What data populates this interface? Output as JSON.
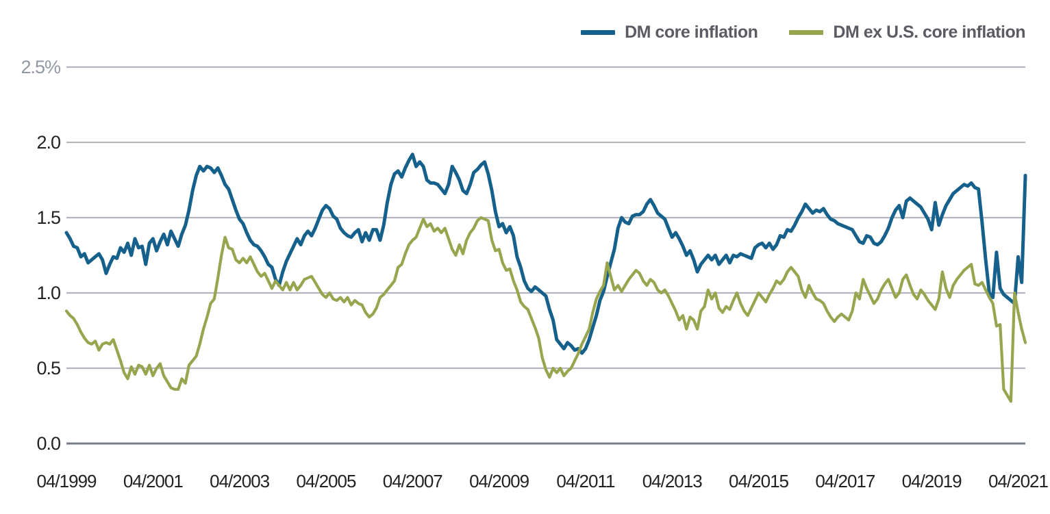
{
  "colors": {
    "background": "#ffffff",
    "gridline": "#b2b6be",
    "baseline": "#767d87",
    "y_axis_label": "#222222",
    "y_axis_top_label": "#9298a2",
    "x_axis_label": "#222222",
    "legend_text": "#5c5b64",
    "series_dm": "#16618c",
    "series_dm_ex_us": "#98a44e"
  },
  "chart_data": {
    "type": "line",
    "title": "",
    "xlabel": "",
    "ylabel": "",
    "unit": "%",
    "grid": "horizontal",
    "legend_position": "top-right",
    "x_frequency": "monthly",
    "x_start": "04/1999",
    "x_end": "06/2021",
    "x_tick_labels": [
      "04/1999",
      "04/2001",
      "04/2003",
      "04/2005",
      "04/2007",
      "04/2009",
      "04/2011",
      "04/2013",
      "04/2015",
      "04/2017",
      "04/2019",
      "04/2021"
    ],
    "x_tick_month_indices": [
      0,
      24,
      48,
      72,
      96,
      120,
      144,
      168,
      192,
      216,
      240,
      264
    ],
    "ylim": [
      0.0,
      2.5
    ],
    "y_ticks": [
      0.0,
      0.5,
      1.0,
      1.5,
      2.0,
      2.5
    ],
    "y_tick_labels": [
      "0.0",
      "0.5",
      "1.0",
      "1.5",
      "2.0",
      "2.5%"
    ],
    "series": [
      {
        "name": "DM core inflation",
        "color": "#16618c",
        "values": [
          1.4,
          1.36,
          1.31,
          1.3,
          1.24,
          1.26,
          1.2,
          1.22,
          1.24,
          1.26,
          1.22,
          1.13,
          1.19,
          1.24,
          1.23,
          1.3,
          1.27,
          1.33,
          1.25,
          1.36,
          1.3,
          1.31,
          1.19,
          1.33,
          1.36,
          1.28,
          1.34,
          1.39,
          1.32,
          1.41,
          1.36,
          1.31,
          1.39,
          1.45,
          1.55,
          1.68,
          1.78,
          1.84,
          1.81,
          1.84,
          1.83,
          1.8,
          1.83,
          1.78,
          1.72,
          1.69,
          1.62,
          1.55,
          1.49,
          1.46,
          1.4,
          1.35,
          1.32,
          1.31,
          1.28,
          1.24,
          1.19,
          1.17,
          1.09,
          1.05,
          1.14,
          1.21,
          1.26,
          1.31,
          1.36,
          1.32,
          1.38,
          1.41,
          1.38,
          1.43,
          1.49,
          1.55,
          1.58,
          1.56,
          1.51,
          1.49,
          1.43,
          1.4,
          1.38,
          1.37,
          1.4,
          1.42,
          1.34,
          1.4,
          1.35,
          1.42,
          1.42,
          1.35,
          1.45,
          1.6,
          1.72,
          1.79,
          1.81,
          1.77,
          1.83,
          1.88,
          1.92,
          1.84,
          1.87,
          1.84,
          1.75,
          1.73,
          1.73,
          1.72,
          1.69,
          1.66,
          1.72,
          1.84,
          1.8,
          1.75,
          1.68,
          1.66,
          1.72,
          1.8,
          1.82,
          1.85,
          1.87,
          1.79,
          1.68,
          1.54,
          1.44,
          1.46,
          1.4,
          1.44,
          1.38,
          1.24,
          1.17,
          1.08,
          1.03,
          1.01,
          1.04,
          1.02,
          1.0,
          0.98,
          0.89,
          0.82,
          0.69,
          0.66,
          0.63,
          0.67,
          0.65,
          0.62,
          0.63,
          0.6,
          0.63,
          0.69,
          0.77,
          0.85,
          0.95,
          1.01,
          1.11,
          1.2,
          1.29,
          1.43,
          1.5,
          1.47,
          1.46,
          1.51,
          1.52,
          1.52,
          1.54,
          1.59,
          1.62,
          1.58,
          1.53,
          1.51,
          1.49,
          1.43,
          1.37,
          1.4,
          1.36,
          1.31,
          1.25,
          1.28,
          1.22,
          1.14,
          1.19,
          1.22,
          1.25,
          1.22,
          1.25,
          1.19,
          1.22,
          1.25,
          1.2,
          1.25,
          1.24,
          1.26,
          1.25,
          1.24,
          1.23,
          1.3,
          1.32,
          1.33,
          1.3,
          1.33,
          1.29,
          1.32,
          1.38,
          1.37,
          1.42,
          1.41,
          1.45,
          1.5,
          1.54,
          1.59,
          1.56,
          1.53,
          1.55,
          1.54,
          1.56,
          1.52,
          1.49,
          1.48,
          1.46,
          1.45,
          1.44,
          1.43,
          1.42,
          1.38,
          1.34,
          1.33,
          1.38,
          1.37,
          1.33,
          1.32,
          1.34,
          1.38,
          1.43,
          1.5,
          1.55,
          1.58,
          1.5,
          1.61,
          1.63,
          1.61,
          1.59,
          1.57,
          1.53,
          1.49,
          1.42,
          1.6,
          1.45,
          1.52,
          1.58,
          1.62,
          1.66,
          1.68,
          1.7,
          1.72,
          1.71,
          1.73,
          1.7,
          1.69,
          1.47,
          1.22,
          1.0,
          0.97,
          1.27,
          1.03,
          0.99,
          0.97,
          0.95,
          0.93,
          1.24,
          1.07,
          1.78
        ]
      },
      {
        "name": "DM ex U.S. core inflation",
        "color": "#98a44e",
        "values": [
          0.88,
          0.85,
          0.83,
          0.79,
          0.74,
          0.7,
          0.67,
          0.66,
          0.68,
          0.62,
          0.66,
          0.67,
          0.66,
          0.69,
          0.62,
          0.55,
          0.47,
          0.43,
          0.51,
          0.46,
          0.52,
          0.51,
          0.46,
          0.52,
          0.45,
          0.5,
          0.53,
          0.45,
          0.41,
          0.37,
          0.36,
          0.36,
          0.43,
          0.4,
          0.52,
          0.55,
          0.58,
          0.66,
          0.76,
          0.84,
          0.93,
          0.96,
          1.1,
          1.25,
          1.37,
          1.3,
          1.29,
          1.22,
          1.2,
          1.23,
          1.2,
          1.24,
          1.19,
          1.14,
          1.11,
          1.13,
          1.08,
          1.03,
          1.08,
          1.05,
          1.02,
          1.07,
          1.02,
          1.07,
          1.02,
          1.05,
          1.09,
          1.1,
          1.11,
          1.07,
          1.03,
          0.99,
          0.97,
          1.0,
          0.96,
          0.95,
          0.97,
          0.94,
          0.97,
          0.92,
          0.95,
          0.93,
          0.92,
          0.87,
          0.84,
          0.86,
          0.9,
          0.97,
          0.99,
          1.02,
          1.05,
          1.08,
          1.17,
          1.19,
          1.26,
          1.32,
          1.35,
          1.37,
          1.43,
          1.49,
          1.44,
          1.46,
          1.41,
          1.43,
          1.4,
          1.43,
          1.36,
          1.29,
          1.25,
          1.32,
          1.26,
          1.35,
          1.4,
          1.43,
          1.48,
          1.5,
          1.49,
          1.48,
          1.35,
          1.28,
          1.29,
          1.2,
          1.15,
          1.16,
          1.08,
          1.02,
          0.94,
          0.91,
          0.89,
          0.83,
          0.77,
          0.7,
          0.57,
          0.49,
          0.44,
          0.5,
          0.47,
          0.5,
          0.45,
          0.48,
          0.5,
          0.55,
          0.6,
          0.66,
          0.71,
          0.76,
          0.87,
          0.96,
          1.01,
          1.05,
          1.2,
          1.11,
          1.02,
          1.05,
          1.01,
          1.05,
          1.09,
          1.12,
          1.15,
          1.13,
          1.08,
          1.05,
          1.09,
          1.07,
          1.02,
          1.0,
          1.02,
          0.98,
          0.93,
          0.88,
          0.82,
          0.85,
          0.76,
          0.84,
          0.82,
          0.76,
          0.88,
          0.91,
          1.02,
          0.96,
          1.0,
          0.9,
          0.87,
          0.91,
          0.89,
          0.95,
          1.0,
          0.93,
          0.88,
          0.85,
          0.9,
          0.95,
          1.0,
          0.97,
          0.94,
          0.99,
          1.03,
          1.08,
          1.06,
          1.09,
          1.14,
          1.17,
          1.14,
          1.11,
          1.02,
          0.97,
          1.05,
          1.0,
          0.96,
          0.95,
          0.93,
          0.88,
          0.84,
          0.81,
          0.84,
          0.86,
          0.84,
          0.82,
          0.88,
          1.0,
          0.96,
          1.09,
          1.03,
          0.98,
          0.93,
          0.96,
          1.02,
          1.06,
          1.09,
          1.03,
          0.97,
          1.0,
          1.09,
          1.12,
          1.05,
          0.99,
          0.96,
          1.02,
          0.99,
          0.95,
          0.92,
          0.89,
          0.96,
          1.14,
          1.03,
          0.97,
          1.05,
          1.09,
          1.12,
          1.15,
          1.17,
          1.19,
          1.06,
          1.05,
          1.07,
          1.02,
          0.97,
          0.93,
          0.78,
          0.79,
          0.36,
          0.32,
          0.28,
          1.0,
          0.87,
          0.76,
          0.67
        ]
      }
    ]
  }
}
